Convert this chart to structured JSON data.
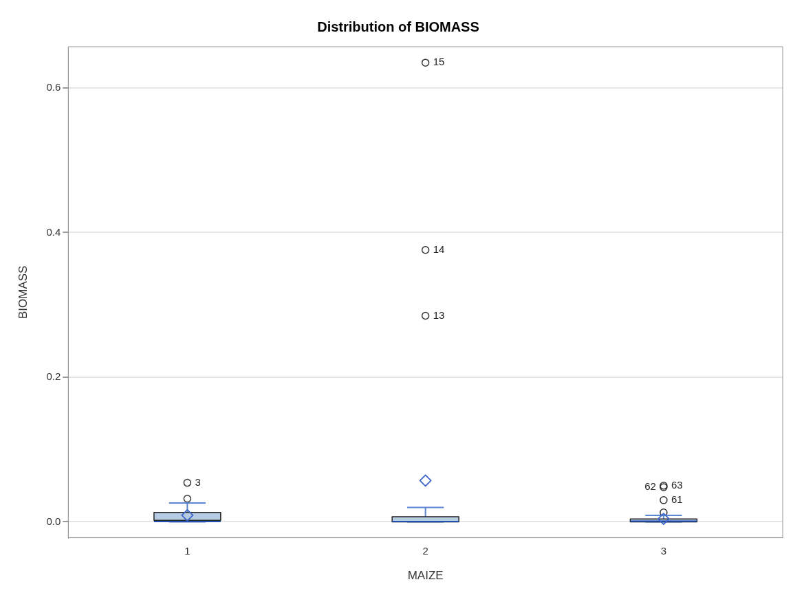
{
  "chart_data": {
    "type": "box",
    "title": "Distribution of BIOMASS",
    "xlabel": "MAIZE",
    "ylabel": "BIOMASS",
    "categories": [
      "1",
      "2",
      "3"
    ],
    "color": "#b8cbe4",
    "boxes": [
      {
        "low": 0,
        "q1": 0.002,
        "median": 0.0005,
        "q3": 0.013,
        "high": 0.026,
        "mean": 0.009
      },
      {
        "low": 0,
        "q1": 0,
        "median": 0.0005,
        "q3": 0.007,
        "high": 0.02,
        "mean": 0.057
      },
      {
        "low": 0,
        "q1": 0,
        "median": 0.001,
        "q3": 0.004,
        "high": 0.009,
        "mean": 0.004
      }
    ],
    "series": [
      {
        "type": "scatter",
        "color": "#333333",
        "marker": "circle",
        "x": [
          "1",
          "1",
          "2",
          "2",
          "2",
          "3",
          "3",
          "3",
          "3"
        ],
        "values": [
          0.032,
          0.054,
          0.285,
          0.376,
          0.635,
          0.013,
          0.03,
          0.048,
          0.05
        ]
      }
    ],
    "ylim": [
      -0.022,
      0.657
    ],
    "yticks": [
      {
        "value": 0,
        "label": "0.0"
      },
      {
        "value": 0.2,
        "label": "0.2"
      },
      {
        "value": 0.4,
        "label": "0.4"
      },
      {
        "value": 0.6,
        "label": "0.6"
      }
    ],
    "grid": "y",
    "legend": false,
    "annotations": [
      {
        "text": "3",
        "x": "1",
        "y": 0.054
      },
      {
        "text": "15",
        "x": "2",
        "y": 0.635
      },
      {
        "text": "14",
        "x": "2",
        "y": 0.376
      },
      {
        "text": "13",
        "x": "2",
        "y": 0.285
      },
      {
        "text": "63",
        "x": "3",
        "y": 0.05
      },
      {
        "text": "62",
        "x": "3",
        "y": 0.048
      },
      {
        "text": "61",
        "x": "3",
        "y": 0.03
      }
    ]
  }
}
